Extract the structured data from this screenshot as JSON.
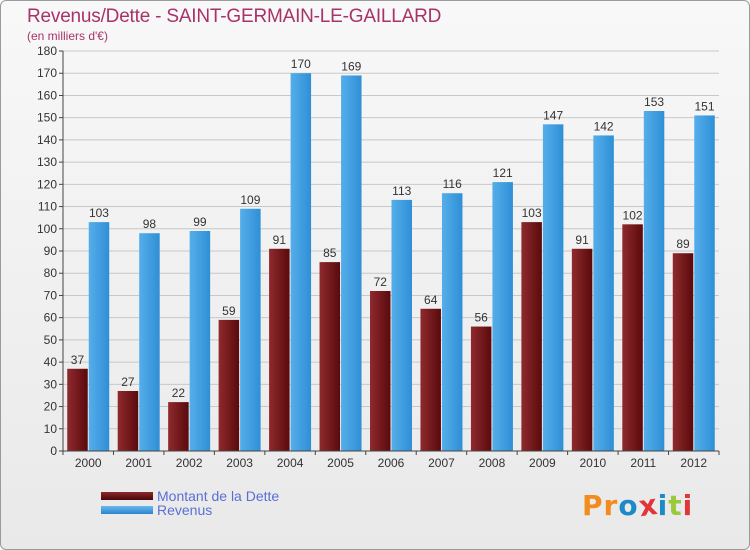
{
  "header": {
    "title": "Revenus/Dette - SAINT-GERMAIN-LE-GAILLARD",
    "subtitle": "(en milliers d'€)"
  },
  "legend": {
    "items": [
      {
        "label": "Montant de la Dette",
        "color": "#6b0f12"
      },
      {
        "label": "Revenus",
        "color": "#3f9ee2"
      }
    ]
  },
  "logo": {
    "text": "Proxiti",
    "letter_colors": [
      "#f28c1e",
      "#f28c1e",
      "#1d8ac8",
      "#e23636",
      "#1d8ac8",
      "#9ac93a",
      "#e23636"
    ]
  },
  "chart_data": {
    "type": "bar",
    "categories": [
      "2000",
      "2001",
      "2002",
      "2003",
      "2004",
      "2005",
      "2006",
      "2007",
      "2008",
      "2009",
      "2010",
      "2011",
      "2012"
    ],
    "series": [
      {
        "name": "Montant de la Dette",
        "values": [
          37,
          27,
          22,
          59,
          91,
          85,
          72,
          64,
          56,
          103,
          91,
          102,
          89
        ],
        "color": "#6b0f12"
      },
      {
        "name": "Revenus",
        "values": [
          103,
          98,
          99,
          109,
          170,
          169,
          113,
          116,
          121,
          147,
          142,
          153,
          151
        ],
        "color": "#3f9ee2"
      }
    ],
    "ylim": [
      0,
      180
    ],
    "ytick_step": 10,
    "yticks": [
      "0",
      "10",
      "20",
      "30",
      "40",
      "50",
      "60",
      "70",
      "80",
      "90",
      "100",
      "110",
      "120",
      "130",
      "140",
      "150",
      "160",
      "170",
      "180"
    ],
    "grid": true,
    "data_labels": true,
    "legend_position": "bottom-left"
  }
}
